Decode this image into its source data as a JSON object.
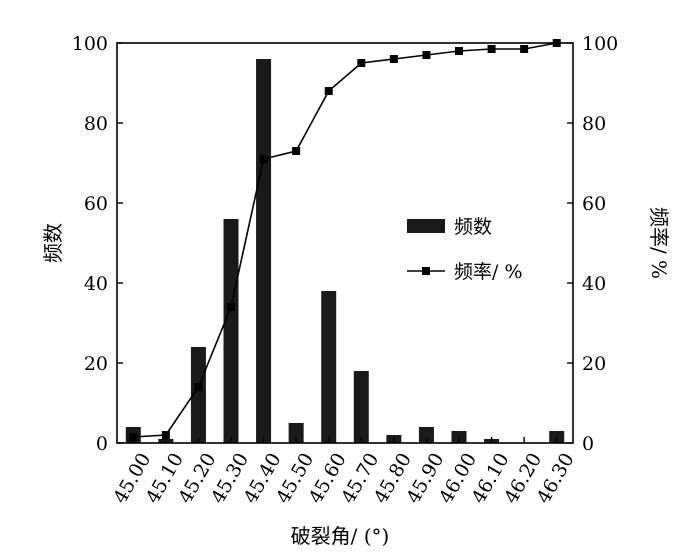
{
  "chart_data": {
    "type": "bar",
    "categories": [
      "45.00",
      "45.10",
      "45.20",
      "45.30",
      "45.40",
      "45.50",
      "45.60",
      "45.70",
      "45.80",
      "45.90",
      "46.00",
      "46.10",
      "46.20",
      "46.30"
    ],
    "series": [
      {
        "name": "频数",
        "type": "bar",
        "axis": "left",
        "values": [
          4,
          1,
          24,
          56,
          96,
          5,
          38,
          18,
          2,
          4,
          3,
          1,
          0,
          3
        ]
      },
      {
        "name": "频率/ %",
        "type": "line",
        "axis": "right",
        "marker": "square",
        "values": [
          1.5,
          2,
          14,
          34,
          71,
          73,
          88,
          95,
          96,
          97,
          98,
          98.5,
          98.5,
          100
        ]
      }
    ],
    "xlabel": "破裂角/ (°)",
    "ylabel": "频数",
    "y2label": "频率/ %",
    "ylim": [
      0,
      100
    ],
    "y2lim": [
      0,
      100
    ],
    "yticks": [
      0,
      20,
      40,
      60,
      80,
      100
    ],
    "y2ticks": [
      0,
      20,
      40,
      60,
      80,
      100
    ],
    "legend_position": "center-right",
    "grid": false,
    "bar_color": "#1a1a1a",
    "line_color": "#000000"
  }
}
